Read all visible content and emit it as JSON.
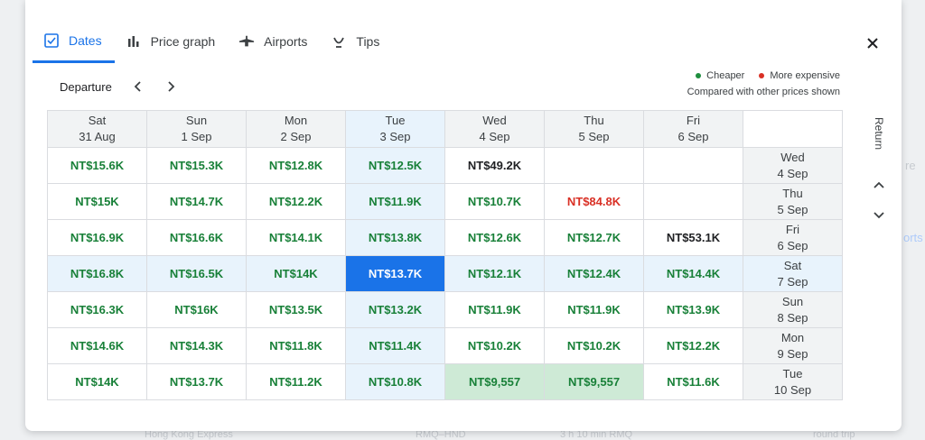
{
  "background": {
    "fragments": [
      "re",
      "orts",
      "Hong Kong Express",
      "RMQ–HND",
      "3 h 10 min RMQ",
      "round trip"
    ]
  },
  "tabs": [
    {
      "label": "Dates",
      "icon": "calendar-check-icon",
      "active": true
    },
    {
      "label": "Price graph",
      "icon": "bar-chart-icon",
      "active": false
    },
    {
      "label": "Airports",
      "icon": "airplane-icon",
      "active": false
    },
    {
      "label": "Tips",
      "icon": "lightbulb-icon",
      "active": false
    }
  ],
  "departure": {
    "label": "Departure"
  },
  "legend": {
    "cheaper": "Cheaper",
    "more_expensive": "More expensive",
    "note": "Compared with other prices shown",
    "cheaper_color": "#1e8e3e",
    "expensive_color": "#d93025"
  },
  "return": {
    "label": "Return"
  },
  "departure_dates": [
    {
      "day": "Sat",
      "date": "31 Aug"
    },
    {
      "day": "Sun",
      "date": "1 Sep"
    },
    {
      "day": "Mon",
      "date": "2 Sep"
    },
    {
      "day": "Tue",
      "date": "3 Sep"
    },
    {
      "day": "Wed",
      "date": "4 Sep"
    },
    {
      "day": "Thu",
      "date": "5 Sep"
    },
    {
      "day": "Fri",
      "date": "6 Sep"
    }
  ],
  "return_dates": [
    {
      "day": "Wed",
      "date": "4 Sep"
    },
    {
      "day": "Thu",
      "date": "5 Sep"
    },
    {
      "day": "Fri",
      "date": "6 Sep"
    },
    {
      "day": "Sat",
      "date": "7 Sep"
    },
    {
      "day": "Sun",
      "date": "8 Sep"
    },
    {
      "day": "Mon",
      "date": "9 Sep"
    },
    {
      "day": "Tue",
      "date": "10 Sep"
    }
  ],
  "selected": {
    "departure_index": 3,
    "return_index": 3
  },
  "prices": [
    [
      {
        "v": "NT$15.6K",
        "t": "cheap"
      },
      {
        "v": "NT$15.3K",
        "t": "cheap"
      },
      {
        "v": "NT$12.8K",
        "t": "cheap"
      },
      {
        "v": "NT$12.5K",
        "t": "cheap"
      },
      {
        "v": "NT$49.2K",
        "t": "neutral"
      },
      {
        "v": "",
        "t": "empty"
      },
      {
        "v": "",
        "t": "empty"
      }
    ],
    [
      {
        "v": "NT$15K",
        "t": "cheap"
      },
      {
        "v": "NT$14.7K",
        "t": "cheap"
      },
      {
        "v": "NT$12.2K",
        "t": "cheap"
      },
      {
        "v": "NT$11.9K",
        "t": "cheap"
      },
      {
        "v": "NT$10.7K",
        "t": "cheap"
      },
      {
        "v": "NT$84.8K",
        "t": "exp"
      },
      {
        "v": "",
        "t": "empty"
      }
    ],
    [
      {
        "v": "NT$16.9K",
        "t": "cheap"
      },
      {
        "v": "NT$16.6K",
        "t": "cheap"
      },
      {
        "v": "NT$14.1K",
        "t": "cheap"
      },
      {
        "v": "NT$13.8K",
        "t": "cheap"
      },
      {
        "v": "NT$12.6K",
        "t": "cheap"
      },
      {
        "v": "NT$12.7K",
        "t": "cheap"
      },
      {
        "v": "NT$53.1K",
        "t": "neutral"
      }
    ],
    [
      {
        "v": "NT$16.8K",
        "t": "cheap"
      },
      {
        "v": "NT$16.5K",
        "t": "cheap"
      },
      {
        "v": "NT$14K",
        "t": "cheap"
      },
      {
        "v": "NT$13.7K",
        "t": "active"
      },
      {
        "v": "NT$12.1K",
        "t": "cheap"
      },
      {
        "v": "NT$12.4K",
        "t": "cheap"
      },
      {
        "v": "NT$14.4K",
        "t": "cheap"
      }
    ],
    [
      {
        "v": "NT$16.3K",
        "t": "cheap"
      },
      {
        "v": "NT$16K",
        "t": "cheap"
      },
      {
        "v": "NT$13.5K",
        "t": "cheap"
      },
      {
        "v": "NT$13.2K",
        "t": "cheap"
      },
      {
        "v": "NT$11.9K",
        "t": "cheap"
      },
      {
        "v": "NT$11.9K",
        "t": "cheap"
      },
      {
        "v": "NT$13.9K",
        "t": "cheap"
      }
    ],
    [
      {
        "v": "NT$14.6K",
        "t": "cheap"
      },
      {
        "v": "NT$14.3K",
        "t": "cheap"
      },
      {
        "v": "NT$11.8K",
        "t": "cheap"
      },
      {
        "v": "NT$11.4K",
        "t": "cheap"
      },
      {
        "v": "NT$10.2K",
        "t": "cheap"
      },
      {
        "v": "NT$10.2K",
        "t": "cheap"
      },
      {
        "v": "NT$12.2K",
        "t": "cheap"
      }
    ],
    [
      {
        "v": "NT$14K",
        "t": "cheap"
      },
      {
        "v": "NT$13.7K",
        "t": "cheap"
      },
      {
        "v": "NT$11.2K",
        "t": "cheap"
      },
      {
        "v": "NT$10.8K",
        "t": "cheap"
      },
      {
        "v": "NT$9,557",
        "t": "best"
      },
      {
        "v": "NT$9,557",
        "t": "best"
      },
      {
        "v": "NT$11.6K",
        "t": "cheap"
      }
    ]
  ]
}
